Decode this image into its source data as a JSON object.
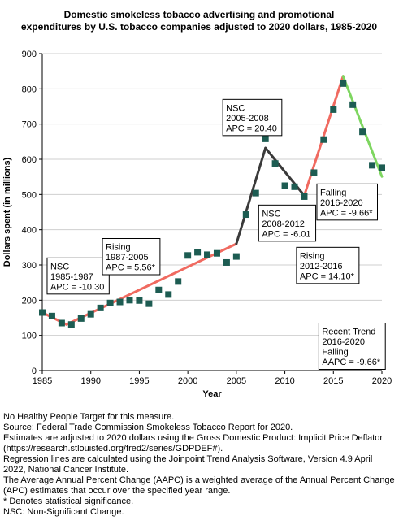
{
  "chart_data": {
    "type": "scatter",
    "title": [
      "Domestic smokeless tobacco advertising and promotional",
      "expenditures by U.S. tobacco companies adjusted to 2020 dollars, 1985-2020"
    ],
    "xlabel": "Year",
    "ylabel": "Dollars spent (in millions)",
    "xlim": [
      1985,
      2020
    ],
    "ylim": [
      0,
      900
    ],
    "xticks": [
      1985,
      1990,
      1995,
      2000,
      2005,
      2010,
      2015,
      2020
    ],
    "yticks": [
      0,
      100,
      200,
      300,
      400,
      500,
      600,
      700,
      800,
      900
    ],
    "grid": "horizontal",
    "x": [
      1985,
      1986,
      1987,
      1988,
      1989,
      1990,
      1991,
      1992,
      1993,
      1994,
      1995,
      1996,
      1997,
      1998,
      1999,
      2000,
      2001,
      2002,
      2003,
      2004,
      2005,
      2006,
      2007,
      2008,
      2009,
      2010,
      2011,
      2012,
      2013,
      2014,
      2015,
      2016,
      2017,
      2018,
      2019,
      2020
    ],
    "y": [
      165,
      155,
      135,
      131,
      148,
      160,
      178,
      192,
      195,
      200,
      199,
      190,
      229,
      216,
      253,
      327,
      336,
      329,
      333,
      307,
      324,
      443,
      504,
      658,
      588,
      525,
      522,
      494,
      562,
      656,
      741,
      815,
      755,
      678,
      583,
      576
    ],
    "marker_color": "#1d5c52",
    "segments": [
      {
        "x": [
          1985,
          1987.5
        ],
        "y": [
          165,
          131
        ],
        "color": "#f06a60"
      },
      {
        "x": [
          1987.5,
          2005
        ],
        "y": [
          131,
          360
        ],
        "color": "#f06a60"
      },
      {
        "x": [
          2005,
          2008
        ],
        "y": [
          360,
          632
        ],
        "color": "#3a3a3a"
      },
      {
        "x": [
          2008,
          2012
        ],
        "y": [
          632,
          497
        ],
        "color": "#3a3a3a"
      },
      {
        "x": [
          2012,
          2016
        ],
        "y": [
          497,
          836
        ],
        "color": "#f06a60"
      },
      {
        "x": [
          2016,
          2020
        ],
        "y": [
          836,
          551
        ],
        "color": "#7ed660"
      }
    ],
    "annotations": [
      {
        "lines": [
          "NSC",
          "1985-1987",
          "APC = -10.30"
        ],
        "anchor_x": 1985.5,
        "anchor_y": 320
      },
      {
        "lines": [
          "Rising",
          "1987-2005",
          "APC =  5.56*"
        ],
        "anchor_x": 1991.2,
        "anchor_y": 375
      },
      {
        "lines": [
          "NSC",
          "2005-2008",
          "APC = 20.40"
        ],
        "anchor_x": 2003.6,
        "anchor_y": 770
      },
      {
        "lines": [
          "NSC",
          "2008-2012",
          "APC = -6.01"
        ],
        "anchor_x": 2007.3,
        "anchor_y": 470
      },
      {
        "lines": [
          "Falling",
          "2016-2020",
          "APC = -9.66*"
        ],
        "anchor_x": 2013.3,
        "anchor_y": 530
      },
      {
        "lines": [
          "Rising",
          "2012-2016",
          "APC = 14.10*"
        ],
        "anchor_x": 2011.2,
        "anchor_y": 350
      },
      {
        "lines": [
          "Recent Trend",
          "2016-2020",
          "Falling",
          "AAPC = -9.66*"
        ],
        "anchor_x": 2013.5,
        "anchor_y": 135
      }
    ]
  },
  "notes": [
    "No Healthy People Target for this measure.",
    "Source: Federal Trade Commission Smokeless Tobacco Report for 2020.",
    "Estimates are adjusted to 2020 dollars using the Gross Domestic Product: Implicit Price Deflator (https://research.stlouisfed.org/fred2/series/GDPDEF#).",
    "Regression lines are calculated using the Joinpoint Trend Analysis Software, Version 4.9 April 2022, National Cancer Institute.",
    "The Average Annual Percent Change (AAPC) is a weighted average of the Annual Percent Change (APC) estimates that occur over the specified year range.",
    "* Denotes statistical significance.",
    "NSC: Non-Significant Change."
  ]
}
